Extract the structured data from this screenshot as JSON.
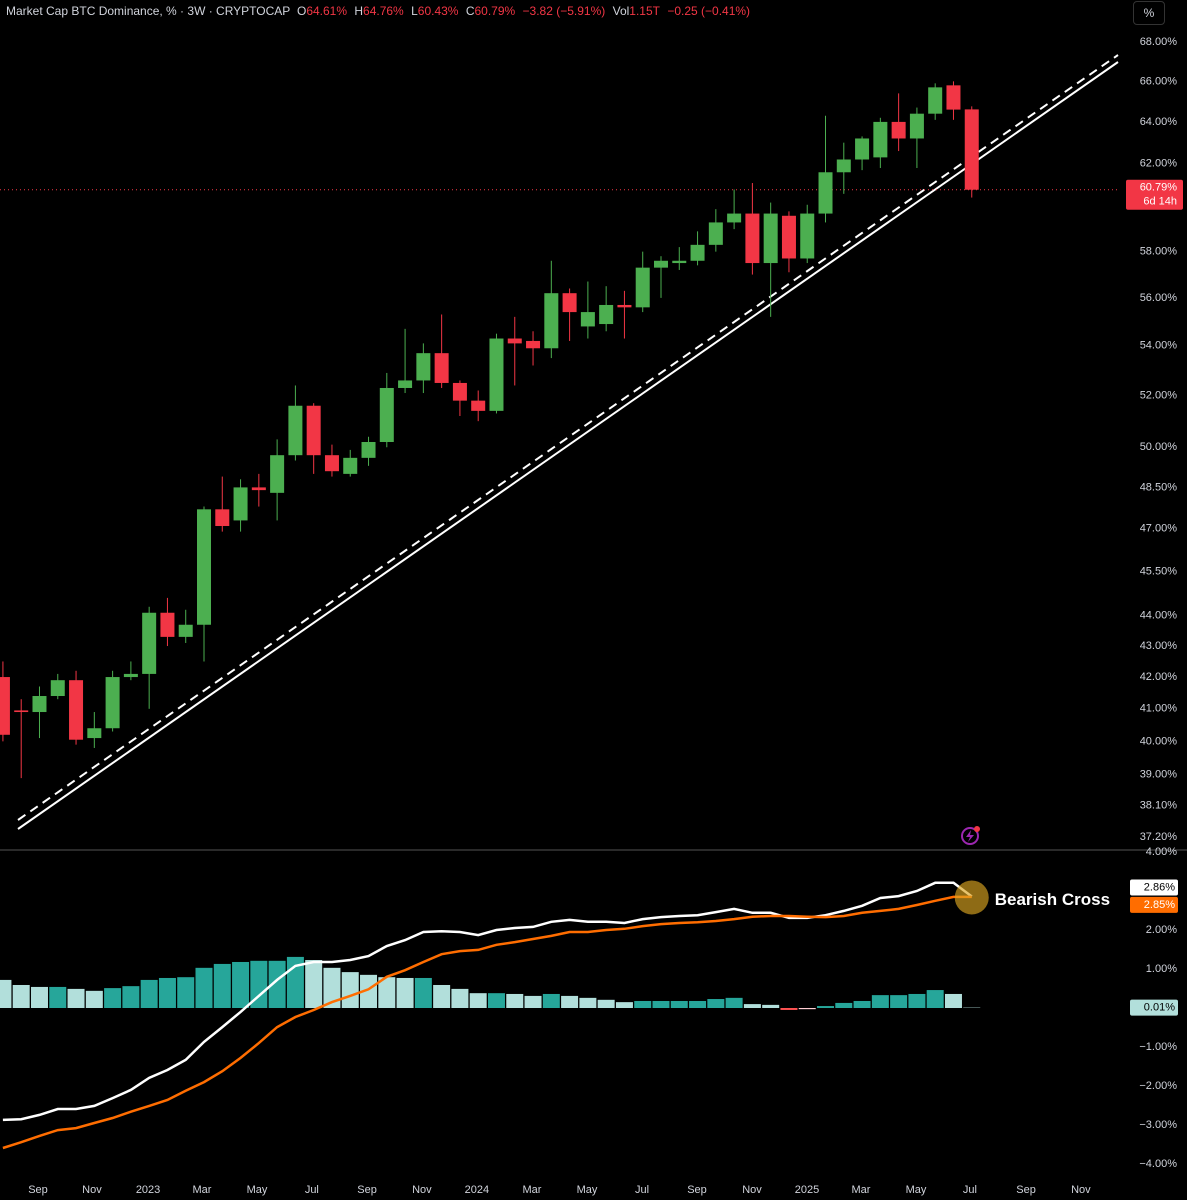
{
  "header": {
    "title": "Market Cap BTC Dominance, % · 3W · CRYPTOCAP",
    "ohlc": [
      {
        "key": "O",
        "value": "64.61%"
      },
      {
        "key": "H",
        "value": "64.76%"
      },
      {
        "key": "L",
        "value": "60.43%"
      },
      {
        "key": "C",
        "value": "60.79%"
      }
    ],
    "change": "−3.82 (−5.91%)",
    "vol_key": "Vol",
    "vol": "1.15T",
    "vol_change": "−0.25 (−0.41%)",
    "scale_button": "%"
  },
  "chart_data": [
    {
      "type": "candlestick",
      "log_scale": true,
      "grid": false,
      "up_color": "#4caf50",
      "down_color": "#f23645",
      "xlim": [
        -0.16,
        61.11
      ],
      "ylim": [
        37.2,
        68
      ],
      "yticks": [
        {
          "value": 37.2,
          "label": "37.20%"
        },
        {
          "value": 38.1,
          "label": "38.10%"
        },
        {
          "value": 39,
          "label": "39.00%"
        },
        {
          "value": 40,
          "label": "40.00%"
        },
        {
          "value": 41,
          "label": "41.00%"
        },
        {
          "value": 42,
          "label": "42.00%"
        },
        {
          "value": 43,
          "label": "43.00%"
        },
        {
          "value": 44,
          "label": "44.00%"
        },
        {
          "value": 45.5,
          "label": "45.50%"
        },
        {
          "value": 47,
          "label": "47.00%"
        },
        {
          "value": 48.5,
          "label": "48.50%"
        },
        {
          "value": 50,
          "label": "50.00%"
        },
        {
          "value": 52,
          "label": "52.00%"
        },
        {
          "value": 54,
          "label": "54.00%"
        },
        {
          "value": 56,
          "label": "56.00%"
        },
        {
          "value": 58,
          "label": "58.00%"
        },
        {
          "value": 62,
          "label": "62.00%"
        },
        {
          "value": 64,
          "label": "64.00%"
        },
        {
          "value": 66,
          "label": "66.00%"
        },
        {
          "value": 68,
          "label": "68.00%"
        }
      ],
      "open": [
        42.0,
        40.95,
        40.9,
        41.4,
        41.9,
        40.1,
        40.4,
        42.0,
        42.1,
        44.1,
        43.3,
        43.7,
        47.7,
        47.3,
        48.5,
        48.3,
        49.7,
        51.6,
        49.7,
        49.0,
        49.6,
        50.2,
        52.3,
        52.6,
        53.7,
        52.5,
        51.8,
        51.4,
        54.3,
        54.2,
        53.9,
        56.2,
        54.8,
        54.9,
        55.7,
        55.6,
        57.3,
        57.5,
        57.6,
        58.3,
        59.3,
        59.7,
        57.5,
        59.6,
        57.7,
        59.7,
        61.6,
        62.2,
        62.3,
        64.0,
        63.2,
        64.4,
        65.8,
        64.61
      ],
      "high": [
        42.5,
        41.3,
        41.7,
        42.1,
        42.2,
        40.9,
        42.2,
        42.5,
        44.3,
        44.6,
        44.2,
        47.8,
        48.9,
        48.8,
        49.0,
        50.3,
        52.4,
        51.7,
        50.1,
        49.9,
        50.4,
        52.9,
        54.7,
        54.1,
        55.3,
        52.6,
        52.2,
        54.5,
        55.2,
        54.6,
        57.6,
        56.4,
        56.7,
        56.5,
        56.3,
        58.0,
        57.8,
        58.2,
        58.9,
        59.9,
        60.8,
        61.1,
        60.2,
        59.8,
        60.1,
        64.3,
        63.0,
        63.3,
        64.2,
        65.4,
        64.7,
        65.9,
        66.0,
        64.76
      ],
      "low": [
        40.0,
        38.9,
        40.1,
        41.3,
        39.9,
        39.8,
        40.3,
        41.9,
        41.0,
        43.0,
        43.1,
        42.5,
        46.9,
        46.9,
        47.8,
        47.3,
        49.5,
        49.0,
        48.9,
        48.9,
        49.3,
        50.0,
        52.1,
        52.1,
        52.3,
        51.2,
        51.0,
        51.3,
        52.4,
        53.2,
        53.5,
        54.2,
        54.3,
        54.6,
        54.3,
        55.4,
        56.0,
        57.2,
        57.4,
        58.0,
        59.0,
        57.0,
        55.2,
        57.1,
        57.5,
        59.3,
        60.6,
        61.7,
        61.8,
        62.6,
        61.8,
        64.1,
        64.1,
        60.43
      ],
      "close": [
        40.2,
        40.9,
        41.4,
        41.9,
        40.05,
        40.4,
        42.0,
        42.1,
        44.1,
        43.3,
        43.7,
        47.7,
        47.1,
        48.5,
        48.4,
        49.7,
        51.6,
        49.7,
        49.1,
        49.6,
        50.2,
        52.3,
        52.6,
        53.7,
        52.5,
        51.8,
        51.4,
        54.3,
        54.1,
        53.9,
        56.2,
        55.4,
        55.4,
        55.7,
        55.6,
        57.3,
        57.6,
        57.6,
        58.3,
        59.3,
        59.7,
        57.5,
        59.7,
        57.7,
        59.7,
        61.6,
        62.2,
        63.2,
        64.0,
        63.2,
        64.4,
        65.7,
        64.6,
        60.79
      ],
      "last_label": "60.79%",
      "countdown": "6d 14h"
    },
    {
      "type": "macd",
      "xlim": [
        -0.16,
        61.11
      ],
      "ylim": [
        -4,
        4
      ],
      "yticks": [
        {
          "value": 4,
          "label": "4.00%"
        },
        {
          "value": 2,
          "label": "2.00%"
        },
        {
          "value": 1,
          "label": "1.00%"
        },
        {
          "value": -1,
          "label": "−1.00%"
        },
        {
          "value": -2,
          "label": "−2.00%"
        },
        {
          "value": -3,
          "label": "−3.00%"
        },
        {
          "value": -4,
          "label": "−4.00%"
        }
      ],
      "xticks": [
        {
          "value": 1.92,
          "label": "Sep"
        },
        {
          "value": 4.87,
          "label": "Nov"
        },
        {
          "value": 7.94,
          "label": "2023"
        },
        {
          "value": 10.89,
          "label": "Mar"
        },
        {
          "value": 13.9,
          "label": "May"
        },
        {
          "value": 16.9,
          "label": "Jul"
        },
        {
          "value": 19.92,
          "label": "Sep"
        },
        {
          "value": 22.92,
          "label": "Nov"
        },
        {
          "value": 25.93,
          "label": "2024"
        },
        {
          "value": 28.94,
          "label": "Mar"
        },
        {
          "value": 31.95,
          "label": "May"
        },
        {
          "value": 34.96,
          "label": "Jul"
        },
        {
          "value": 37.97,
          "label": "Sep"
        },
        {
          "value": 40.98,
          "label": "Nov"
        },
        {
          "value": 43.99,
          "label": "2025"
        },
        {
          "value": 46.94,
          "label": "Mar"
        },
        {
          "value": 49.95,
          "label": "May"
        },
        {
          "value": 52.9,
          "label": "Jul"
        },
        {
          "value": 55.97,
          "label": "Sep"
        },
        {
          "value": 58.97,
          "label": "Nov"
        }
      ],
      "histogram": {
        "values": [
          0.72,
          0.59,
          0.54,
          0.54,
          0.49,
          0.44,
          0.51,
          0.56,
          0.72,
          0.77,
          0.79,
          1.03,
          1.13,
          1.18,
          1.21,
          1.21,
          1.31,
          1.23,
          1.03,
          0.92,
          0.85,
          0.79,
          0.77,
          0.77,
          0.59,
          0.49,
          0.38,
          0.38,
          0.36,
          0.31,
          0.36,
          0.31,
          0.26,
          0.21,
          0.15,
          0.18,
          0.18,
          0.18,
          0.18,
          0.23,
          0.26,
          0.1,
          0.08,
          -0.05,
          -0.03,
          0.05,
          0.13,
          0.18,
          0.33,
          0.33,
          0.36,
          0.46,
          0.36,
          0.01
        ],
        "colors": {
          "rising_up": "#26a69a",
          "falling_up": "#b2dfdb",
          "falling_down": "#ff5252",
          "rising_down": "#ffcdd2"
        },
        "value_label": "0.01%"
      },
      "lines": [
        {
          "color": "#ffffff",
          "value_label": "2.86%",
          "values": [
            -2.87,
            -2.85,
            -2.74,
            -2.59,
            -2.59,
            -2.51,
            -2.31,
            -2.1,
            -1.79,
            -1.59,
            -1.33,
            -0.87,
            -0.49,
            -0.1,
            0.31,
            0.72,
            1.08,
            1.18,
            1.18,
            1.23,
            1.33,
            1.59,
            1.74,
            1.95,
            1.97,
            1.95,
            1.87,
            2.0,
            2.05,
            2.08,
            2.21,
            2.26,
            2.21,
            2.21,
            2.18,
            2.28,
            2.33,
            2.36,
            2.38,
            2.46,
            2.54,
            2.44,
            2.44,
            2.31,
            2.31,
            2.38,
            2.49,
            2.62,
            2.82,
            2.87,
            3.0,
            3.21,
            3.21,
            2.86
          ]
        },
        {
          "color": "#ff6d00",
          "value_label": "2.85%",
          "values": [
            -3.59,
            -3.44,
            -3.28,
            -3.13,
            -3.08,
            -2.95,
            -2.82,
            -2.66,
            -2.51,
            -2.36,
            -2.12,
            -1.9,
            -1.62,
            -1.28,
            -0.9,
            -0.49,
            -0.23,
            -0.05,
            0.15,
            0.31,
            0.48,
            0.8,
            0.97,
            1.18,
            1.38,
            1.46,
            1.49,
            1.62,
            1.69,
            1.77,
            1.85,
            1.95,
            1.95,
            2.0,
            2.03,
            2.1,
            2.15,
            2.18,
            2.2,
            2.23,
            2.28,
            2.34,
            2.36,
            2.36,
            2.34,
            2.33,
            2.36,
            2.44,
            2.49,
            2.54,
            2.64,
            2.75,
            2.85,
            2.85
          ]
        }
      ],
      "annotation": "Bearish Cross"
    }
  ]
}
